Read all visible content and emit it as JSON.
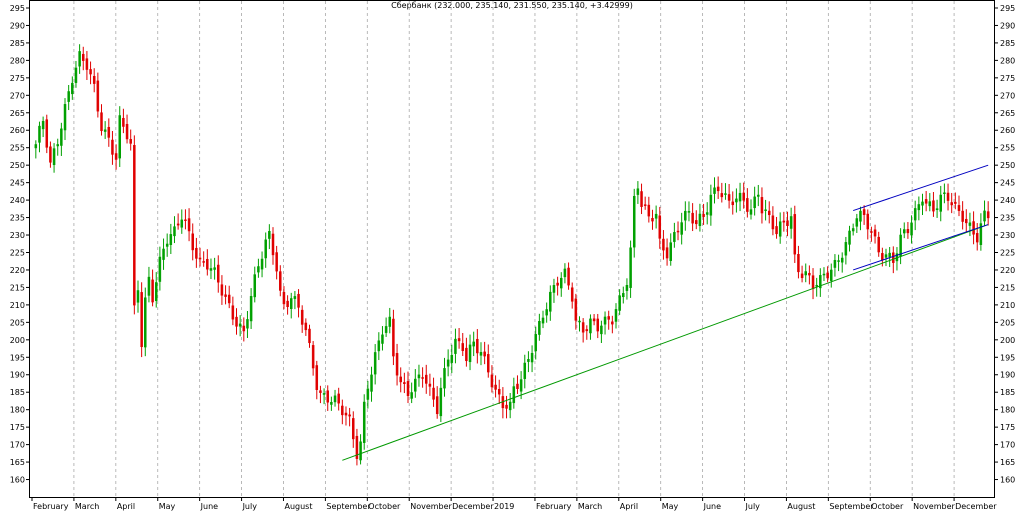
{
  "chart_data": {
    "type": "candlestick",
    "title": "Сбербанк (232.000, 235.140, 231.550, 235.140, +3.42999)",
    "ylim": [
      155,
      297
    ],
    "yticks": [
      160,
      165,
      170,
      175,
      180,
      185,
      190,
      195,
      200,
      205,
      210,
      215,
      220,
      225,
      230,
      235,
      240,
      245,
      250,
      255,
      260,
      265,
      270,
      275,
      280,
      285,
      290,
      295
    ],
    "x_labels": [
      "February",
      "March",
      "April",
      "May",
      "June",
      "July",
      "August",
      "September",
      "October",
      "November",
      "December",
      "2019",
      "February",
      "March",
      "April",
      "May",
      "June",
      "July",
      "August",
      "September",
      "October",
      "November",
      "December"
    ],
    "up_color": "#00a000",
    "down_color": "#e00000",
    "grid": true,
    "price_path": [
      [
        0,
        255
      ],
      [
        2,
        262
      ],
      [
        4,
        250
      ],
      [
        6,
        258
      ],
      [
        8,
        267
      ],
      [
        10,
        275
      ],
      [
        12,
        280
      ],
      [
        14,
        278
      ],
      [
        16,
        272
      ],
      [
        18,
        262
      ],
      [
        20,
        258
      ],
      [
        22,
        252
      ],
      [
        23,
        262
      ],
      [
        25,
        258
      ],
      [
        26,
        255
      ],
      [
        27,
        208
      ],
      [
        28,
        215
      ],
      [
        29,
        200
      ],
      [
        30,
        212
      ],
      [
        31,
        218
      ],
      [
        32,
        213
      ],
      [
        34,
        222
      ],
      [
        36,
        228
      ],
      [
        38,
        230
      ],
      [
        40,
        236
      ],
      [
        41,
        234
      ],
      [
        43,
        228
      ],
      [
        45,
        222
      ],
      [
        47,
        221
      ],
      [
        49,
        218
      ],
      [
        51,
        214
      ],
      [
        53,
        210
      ],
      [
        55,
        206
      ],
      [
        57,
        202
      ],
      [
        59,
        212
      ],
      [
        61,
        220
      ],
      [
        63,
        228
      ],
      [
        64,
        230
      ],
      [
        66,
        222
      ],
      [
        67,
        214
      ],
      [
        68,
        210
      ],
      [
        70,
        212
      ],
      [
        72,
        208
      ],
      [
        74,
        202
      ],
      [
        76,
        193
      ],
      [
        77,
        188
      ],
      [
        78,
        185
      ],
      [
        80,
        184
      ],
      [
        82,
        182
      ],
      [
        84,
        179
      ],
      [
        86,
        176
      ],
      [
        88,
        168
      ],
      [
        89,
        171
      ],
      [
        90,
        182
      ],
      [
        91,
        188
      ],
      [
        93,
        195
      ],
      [
        95,
        202
      ],
      [
        97,
        204
      ],
      [
        98,
        195
      ],
      [
        100,
        188
      ],
      [
        102,
        186
      ],
      [
        104,
        188
      ],
      [
        106,
        190
      ],
      [
        108,
        184
      ],
      [
        110,
        180
      ],
      [
        111,
        186
      ],
      [
        113,
        196
      ],
      [
        115,
        200
      ],
      [
        117,
        198
      ],
      [
        118,
        194
      ],
      [
        120,
        198
      ],
      [
        122,
        196
      ],
      [
        124,
        192
      ],
      [
        126,
        186
      ],
      [
        128,
        182
      ],
      [
        130,
        180
      ],
      [
        131,
        185
      ],
      [
        133,
        188
      ],
      [
        135,
        195
      ],
      [
        137,
        202
      ],
      [
        139,
        208
      ],
      [
        141,
        212
      ],
      [
        143,
        216
      ],
      [
        145,
        218
      ],
      [
        147,
        213
      ],
      [
        148,
        206
      ],
      [
        150,
        204
      ],
      [
        152,
        205
      ],
      [
        154,
        203
      ],
      [
        156,
        204
      ],
      [
        158,
        206
      ],
      [
        160,
        212
      ],
      [
        162,
        218
      ],
      [
        163,
        226
      ],
      [
        164,
        240
      ],
      [
        165,
        244
      ],
      [
        166,
        238
      ],
      [
        168,
        234
      ],
      [
        170,
        236
      ],
      [
        171,
        228
      ],
      [
        173,
        226
      ],
      [
        175,
        230
      ],
      [
        177,
        234
      ],
      [
        179,
        235
      ],
      [
        181,
        233
      ],
      [
        183,
        236
      ],
      [
        185,
        242
      ],
      [
        187,
        244
      ],
      [
        189,
        240
      ],
      [
        190,
        238
      ],
      [
        192,
        240
      ],
      [
        194,
        240
      ],
      [
        196,
        238
      ],
      [
        198,
        243
      ],
      [
        199,
        238
      ],
      [
        201,
        234
      ],
      [
        203,
        230
      ],
      [
        205,
        233
      ],
      [
        207,
        236
      ],
      [
        208,
        224
      ],
      [
        209,
        221
      ],
      [
        211,
        219
      ],
      [
        213,
        215
      ],
      [
        215,
        216
      ],
      [
        217,
        219
      ],
      [
        219,
        222
      ],
      [
        221,
        226
      ],
      [
        223,
        230
      ],
      [
        225,
        235
      ],
      [
        227,
        234
      ],
      [
        229,
        231
      ],
      [
        231,
        226
      ],
      [
        233,
        225
      ],
      [
        235,
        223
      ],
      [
        237,
        228
      ],
      [
        239,
        231
      ],
      [
        241,
        236
      ],
      [
        243,
        242
      ],
      [
        244,
        240
      ],
      [
        246,
        238
      ],
      [
        248,
        240
      ],
      [
        250,
        240
      ],
      [
        252,
        237
      ],
      [
        254,
        236
      ],
      [
        256,
        233
      ],
      [
        258,
        230
      ],
      [
        260,
        235
      ]
    ],
    "bars_count": 262,
    "support_line": {
      "from": [
        84,
        165.5
      ],
      "to": [
        261,
        233
      ]
    },
    "channel_upper": {
      "from": [
        224,
        237
      ],
      "to": [
        261,
        250
      ]
    },
    "channel_lower": {
      "from": [
        224,
        220
      ],
      "to": [
        261,
        233
      ]
    },
    "support_color": "#009900",
    "channel_color": "#0000c0"
  }
}
